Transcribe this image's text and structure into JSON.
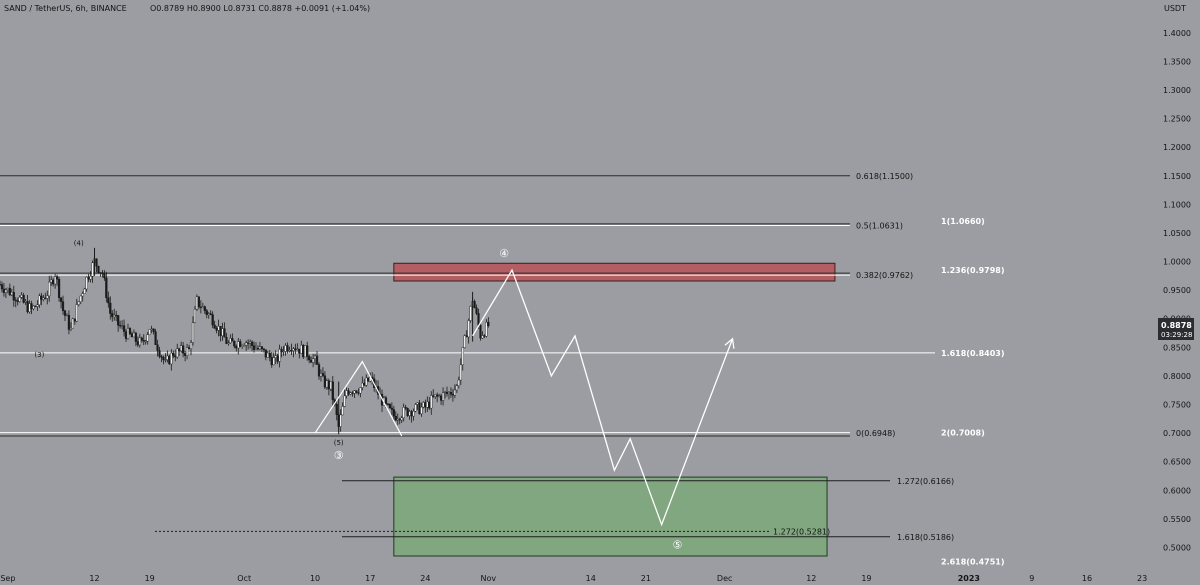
{
  "header": {
    "symbol_line": "SAND / TetherUS, 6h, BINANCE",
    "ohlc": "O0.8789  H0.8900  L0.8731  C0.8878  +0.0091 (+1.04%)",
    "currency": "USDT"
  },
  "price_tag": {
    "value": "0.8878",
    "countdown": "03:29:28"
  },
  "colors": {
    "background": "#9b9da2",
    "resistance_box": "#b35b5f",
    "support_box": "#7ea87d",
    "projection": "#ffffff",
    "candles": "#1a1a1a"
  },
  "chart_data": {
    "type": "candlestick",
    "yaxis": {
      "ticks": [
        "1.4000",
        "1.3500",
        "1.3000",
        "1.2500",
        "1.2000",
        "1.1500",
        "1.1000",
        "1.0500",
        "1.0000",
        "0.9500",
        "0.9000",
        "0.8500",
        "0.8000",
        "0.7500",
        "0.7000",
        "0.6500",
        "0.6000",
        "0.5500",
        "0.5000"
      ],
      "range": [
        0.485,
        1.412
      ]
    },
    "xaxis": {
      "ticks": [
        "Sep",
        "12",
        "19",
        "Oct",
        "10",
        "17",
        "24",
        "Nov",
        "14",
        "21",
        "Dec",
        "12",
        "19",
        "2023",
        "9",
        "16",
        "23"
      ],
      "tick_dates": [
        "2022-09-01",
        "2022-09-12",
        "2022-09-19",
        "2022-10-01",
        "2022-10-10",
        "2022-10-17",
        "2022-10-24",
        "2022-11-01",
        "2022-11-14",
        "2022-11-21",
        "2022-12-01",
        "2022-12-12",
        "2022-12-19",
        "2023-01-01",
        "2023-01-09",
        "2023-01-16",
        "2023-01-23"
      ],
      "range": [
        "2022-08-31",
        "2023-01-24"
      ]
    },
    "price_path": [
      [
        "2022-08-31",
        0.96
      ],
      [
        "2022-09-02",
        0.94
      ],
      [
        "2022-09-04",
        0.915
      ],
      [
        "2022-09-06",
        0.945
      ],
      [
        "2022-09-07",
        0.98
      ],
      [
        "2022-09-08",
        0.915
      ],
      [
        "2022-09-09",
        0.88
      ],
      [
        "2022-09-10",
        0.93
      ],
      [
        "2022-09-11",
        0.97
      ],
      [
        "2022-09-12",
        1.0
      ],
      [
        "2022-09-13",
        0.98
      ],
      [
        "2022-09-14",
        0.91
      ],
      [
        "2022-09-15",
        0.89
      ],
      [
        "2022-09-16",
        0.875
      ],
      [
        "2022-09-18",
        0.855
      ],
      [
        "2022-09-19",
        0.885
      ],
      [
        "2022-09-21",
        0.82
      ],
      [
        "2022-09-22",
        0.84
      ],
      [
        "2022-09-24",
        0.845
      ],
      [
        "2022-09-25",
        0.93
      ],
      [
        "2022-09-27",
        0.9
      ],
      [
        "2022-09-29",
        0.855
      ],
      [
        "2022-10-01",
        0.862
      ],
      [
        "2022-10-03",
        0.845
      ],
      [
        "2022-10-05",
        0.825
      ],
      [
        "2022-10-06",
        0.85
      ],
      [
        "2022-10-07",
        0.855
      ],
      [
        "2022-10-09",
        0.84
      ],
      [
        "2022-10-10",
        0.825
      ],
      [
        "2022-10-11",
        0.79
      ],
      [
        "2022-10-12",
        0.78
      ],
      [
        "2022-10-13",
        0.71
      ],
      [
        "2022-10-14",
        0.775
      ],
      [
        "2022-10-16",
        0.78
      ],
      [
        "2022-10-17",
        0.795
      ],
      [
        "2022-10-18",
        0.77
      ],
      [
        "2022-10-19",
        0.745
      ],
      [
        "2022-10-20",
        0.73
      ],
      [
        "2022-10-22",
        0.74
      ],
      [
        "2022-10-24",
        0.745
      ],
      [
        "2022-10-25",
        0.76
      ],
      [
        "2022-10-27",
        0.77
      ],
      [
        "2022-10-28",
        0.78
      ],
      [
        "2022-10-29",
        0.86
      ],
      [
        "2022-10-30",
        0.935
      ],
      [
        "2022-10-31",
        0.872
      ],
      [
        "2022-11-01",
        0.8878
      ]
    ],
    "key_wicks": [
      {
        "date": "2022-09-12",
        "high": 1.024,
        "low": 0.975
      },
      {
        "date": "2022-10-13",
        "high": 0.79,
        "low": 0.698
      },
      {
        "date": "2022-10-30",
        "high": 0.947,
        "low": 0.86
      }
    ],
    "horizontal_levels": [
      {
        "price": 1.15,
        "label": "0.618(1.1500)",
        "style": "dark"
      },
      {
        "price": 1.0631,
        "label": "0.5(1.0631)",
        "style": "light"
      },
      {
        "price": 1.066,
        "label": "1(1.0660)",
        "style": "white"
      },
      {
        "price": 0.9762,
        "label": "0.382(0.9762)",
        "style": "light"
      },
      {
        "price": 0.9798,
        "label": "1.236(0.9798)",
        "style": "white"
      },
      {
        "price": 0.8403,
        "label": "1.618(0.8403)",
        "style": "white"
      },
      {
        "price": 0.6948,
        "label": "0(0.6948)",
        "style": "light"
      },
      {
        "price": 0.7008,
        "label": "2(0.7008)",
        "style": "white"
      },
      {
        "price": 0.6166,
        "label": "1.272(0.6166)",
        "style": "dark"
      },
      {
        "price": 0.5281,
        "label": "1.272(0.5281)",
        "style": "dashed"
      },
      {
        "price": 0.5186,
        "label": "1.618(0.5186)",
        "style": "dark"
      },
      {
        "price": 0.4751,
        "label": "2.618(0.4751)",
        "style": "white"
      }
    ],
    "resistance_zone": {
      "from": "2022-10-20",
      "to": "2022-12-15",
      "low": 0.966,
      "high": 0.997
    },
    "support_zone": {
      "from": "2022-10-20",
      "to": "2022-12-14",
      "low": 0.485,
      "high": 0.623
    },
    "projection_path": [
      [
        "2022-10-30",
        0.87
      ],
      [
        "2022-11-04",
        0.985
      ],
      [
        "2022-11-09",
        0.8
      ],
      [
        "2022-11-12",
        0.87
      ],
      [
        "2022-11-17",
        0.635
      ],
      [
        "2022-11-19",
        0.69
      ],
      [
        "2022-11-23",
        0.54
      ],
      [
        "2022-12-02",
        0.865
      ]
    ],
    "small_triangle_path": [
      [
        "2022-10-10",
        0.7
      ],
      [
        "2022-10-16",
        0.825
      ],
      [
        "2022-10-21",
        0.695
      ]
    ],
    "wave_labels": [
      {
        "text": "(4)",
        "date": "2022-09-10",
        "price": 1.033
      },
      {
        "text": "(3)",
        "date": "2022-09-05",
        "price": 0.838
      },
      {
        "text": "(5)",
        "date": "2022-10-13",
        "price": 0.684
      },
      {
        "text": "③",
        "date": "2022-10-13",
        "price": 0.662,
        "circled": true
      },
      {
        "text": "④",
        "date": "2022-11-03",
        "price": 1.015,
        "circled": true
      },
      {
        "text": "⑤",
        "date": "2022-11-25",
        "price": 0.505,
        "circled": true
      }
    ]
  }
}
